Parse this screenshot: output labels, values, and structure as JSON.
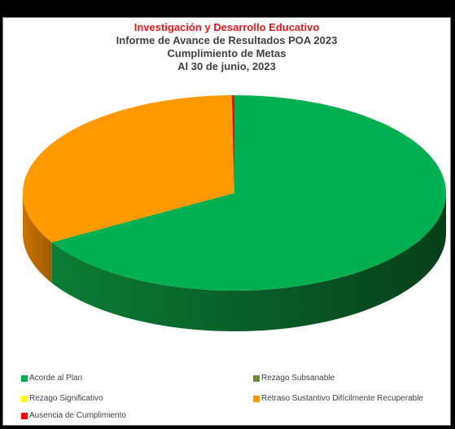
{
  "titles": {
    "line1": "Investigación y Desarrollo Educativo",
    "line2": "Informe de Avance de Resultados POA 2023",
    "line3": "Cumplimiento de Metas",
    "line4": "Al 30 de junio, 2023"
  },
  "chart_data": {
    "type": "pie",
    "title": "Investigación y Desarrollo Educativo",
    "subtitle": "Informe de Avance de Resultados POA 2023 / Cumplimiento de Metas / Al 30 de junio, 2023",
    "style": "3d",
    "legend_position": "bottom",
    "categories": [
      "Acorde al Plan",
      "Rezago Subsanable",
      "Rezago Significativo",
      "Retraso Sustantivo Difícilmente Recuperable",
      "Ausencia de Cumplimiento"
    ],
    "values": [
      66.7,
      0,
      0,
      33.3,
      0.2
    ],
    "colors": [
      "#00b050",
      "#6b8e3d",
      "#ffff00",
      "#ff9900",
      "#ff0000"
    ]
  }
}
